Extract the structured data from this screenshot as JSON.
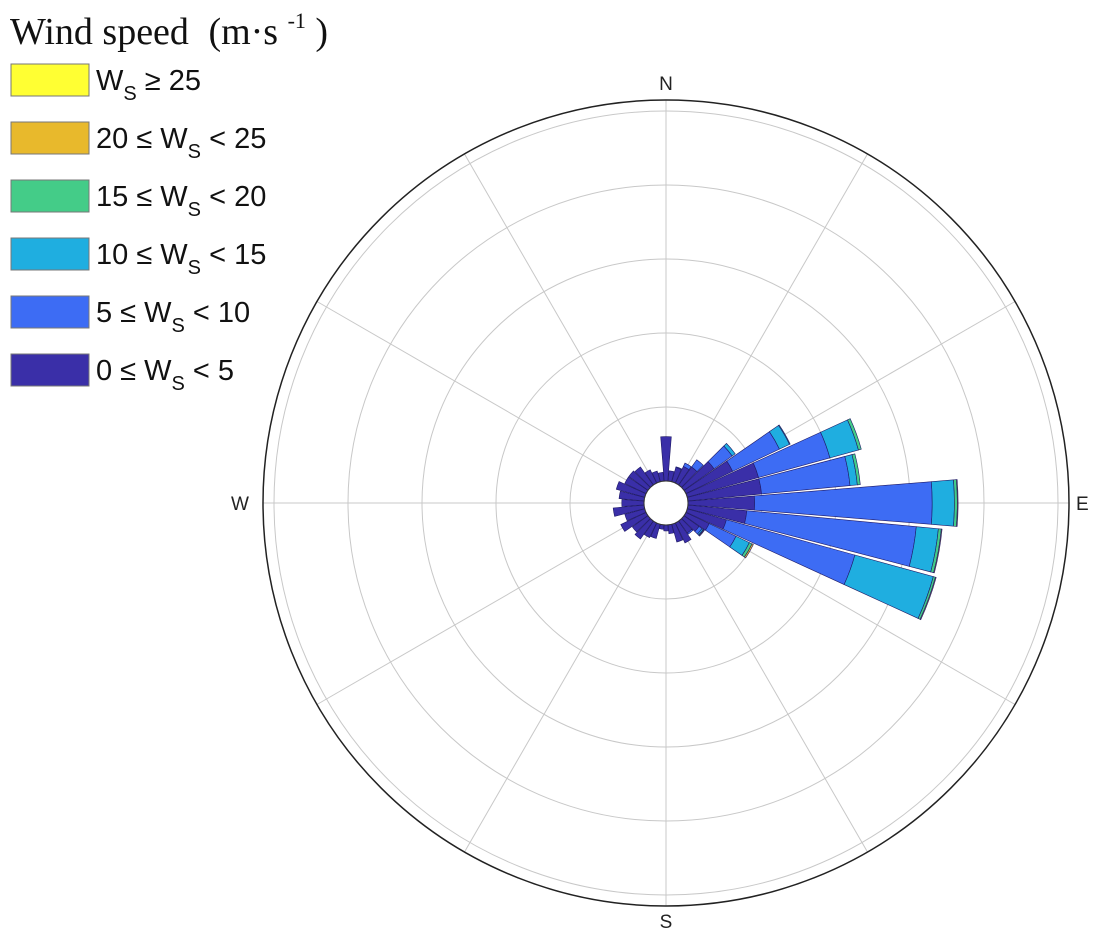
{
  "chart_data": {
    "type": "wind-rose",
    "title": "Wind speed",
    "title_unit_base": "(m·s",
    "title_unit_exp": "-1",
    "title_unit_close": ")",
    "directions": [
      "N",
      "E",
      "S",
      "W"
    ],
    "rings": [
      1,
      2,
      3,
      4,
      5
    ],
    "spokes": 12,
    "grid": true,
    "legend_position": "top-left",
    "bins": [
      {
        "label_pre": "W",
        "label_sub": "S",
        "label_post": " ≥ 25",
        "color": "#ffff33"
      },
      {
        "label_pre": "20 ≤ W",
        "label_sub": "S",
        "label_post": " < 25",
        "color": "#e8b92c"
      },
      {
        "label_pre": "15 ≤ W",
        "label_sub": "S",
        "label_post": " < 20",
        "color": "#44cc88"
      },
      {
        "label_pre": "10 ≤ W",
        "label_sub": "S",
        "label_post": " < 15",
        "color": "#1faee0"
      },
      {
        "label_pre": "5 ≤ W",
        "label_sub": "S",
        "label_post": " < 10",
        "color": "#3d6cf4"
      },
      {
        "label_pre": "0 ≤ W",
        "label_sub": "S",
        "label_post": " < 5",
        "color": "#3a2fa8"
      }
    ],
    "sectors": [
      {
        "dir": 0,
        "stack": [
          0.6,
          0,
          0,
          0,
          0,
          0
        ]
      },
      {
        "dir": 10,
        "stack": [
          0.14,
          0,
          0,
          0,
          0,
          0
        ]
      },
      {
        "dir": 20,
        "stack": [
          0.2,
          0.01,
          0,
          0,
          0,
          0
        ]
      },
      {
        "dir": 30,
        "stack": [
          0.25,
          0.05,
          0,
          0,
          0,
          0
        ]
      },
      {
        "dir": 40,
        "stack": [
          0.3,
          0.12,
          0,
          0,
          0,
          0
        ]
      },
      {
        "dir": 50,
        "stack": [
          0.5,
          0.3,
          0.05,
          0,
          0,
          0
        ]
      },
      {
        "dir": 60,
        "stack": [
          0.7,
          0.7,
          0.15,
          0.01,
          0,
          0
        ]
      },
      {
        "dir": 70,
        "stack": [
          1.0,
          1.0,
          0.4,
          0.04,
          0,
          0
        ]
      },
      {
        "dir": 80,
        "stack": [
          1.0,
          1.2,
          0.1,
          0.04,
          0,
          0
        ]
      },
      {
        "dir": 90,
        "stack": [
          0.9,
          2.4,
          0.3,
          0.04,
          0.01,
          0
        ]
      },
      {
        "dir": 100,
        "stack": [
          0.8,
          2.3,
          0.3,
          0.04,
          0.01,
          0
        ]
      },
      {
        "dir": 110,
        "stack": [
          0.55,
          1.8,
          1.1,
          0.03,
          0.01,
          0
        ]
      },
      {
        "dir": 120,
        "stack": [
          0.35,
          0.4,
          0.2,
          0.04,
          0.02,
          0
        ]
      },
      {
        "dir": 130,
        "stack": [
          0.25,
          0.05,
          0.02,
          0.01,
          0.01,
          0
        ]
      },
      {
        "dir": 140,
        "stack": [
          0.2,
          0.02,
          0,
          0,
          0,
          0
        ]
      },
      {
        "dir": 150,
        "stack": [
          0.3,
          0,
          0,
          0,
          0,
          0
        ]
      },
      {
        "dir": 160,
        "stack": [
          0.25,
          0,
          0,
          0,
          0,
          0
        ]
      },
      {
        "dir": 170,
        "stack": [
          0.12,
          0,
          0,
          0,
          0,
          0
        ]
      },
      {
        "dir": 180,
        "stack": [
          0.08,
          0,
          0,
          0,
          0,
          0
        ]
      },
      {
        "dir": 190,
        "stack": [
          0.06,
          0,
          0,
          0,
          0,
          0
        ]
      },
      {
        "dir": 200,
        "stack": [
          0.2,
          0,
          0,
          0,
          0,
          0
        ]
      },
      {
        "dir": 210,
        "stack": [
          0.22,
          0,
          0,
          0,
          0,
          0
        ]
      },
      {
        "dir": 220,
        "stack": [
          0.3,
          0,
          0,
          0,
          0,
          0
        ]
      },
      {
        "dir": 230,
        "stack": [
          0.26,
          0,
          0,
          0,
          0,
          0
        ]
      },
      {
        "dir": 240,
        "stack": [
          0.38,
          0,
          0,
          0,
          0,
          0
        ]
      },
      {
        "dir": 250,
        "stack": [
          0.28,
          0,
          0,
          0,
          0,
          0
        ]
      },
      {
        "dir": 260,
        "stack": [
          0.42,
          0,
          0,
          0,
          0,
          0
        ]
      },
      {
        "dir": 270,
        "stack": [
          0.3,
          0,
          0,
          0,
          0,
          0
        ]
      },
      {
        "dir": 280,
        "stack": [
          0.34,
          0,
          0,
          0,
          0,
          0
        ]
      },
      {
        "dir": 290,
        "stack": [
          0.4,
          0,
          0,
          0,
          0,
          0
        ]
      },
      {
        "dir": 300,
        "stack": [
          0.32,
          0,
          0,
          0,
          0,
          0
        ]
      },
      {
        "dir": 310,
        "stack": [
          0.32,
          0,
          0,
          0,
          0,
          0
        ]
      },
      {
        "dir": 320,
        "stack": [
          0.3,
          0,
          0,
          0,
          0,
          0
        ]
      },
      {
        "dir": 330,
        "stack": [
          0.2,
          0,
          0,
          0,
          0,
          0
        ]
      },
      {
        "dir": 340,
        "stack": [
          0.15,
          0,
          0,
          0,
          0,
          0
        ]
      },
      {
        "dir": 350,
        "stack": [
          0.12,
          0,
          0,
          0,
          0,
          0
        ]
      }
    ]
  }
}
